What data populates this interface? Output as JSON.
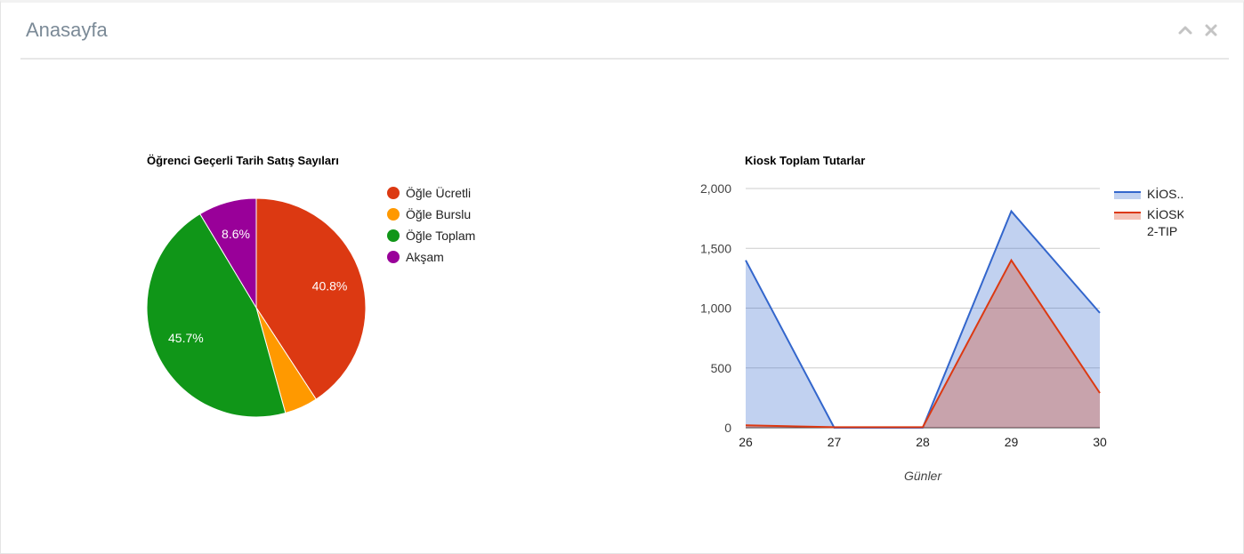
{
  "header": {
    "title": "Anasayfa",
    "collapse_icon": "chevron-up-icon",
    "close_icon": "close-icon"
  },
  "chart_data": [
    {
      "type": "pie",
      "title": "Öğrenci Geçerli Tarih Satış Sayıları",
      "legend_position": "right",
      "slices": [
        {
          "label": "Öğle Ücretli",
          "value": 40.8,
          "display": "40.8%",
          "color": "#dc3912"
        },
        {
          "label": "Öğle Burslu",
          "value": 4.9,
          "display": "",
          "color": "#ff9900"
        },
        {
          "label": "Öğle Toplam",
          "value": 45.7,
          "display": "45.7%",
          "color": "#109618"
        },
        {
          "label": "Akşam",
          "value": 8.6,
          "display": "8.6%",
          "color": "#990099"
        }
      ]
    },
    {
      "type": "area",
      "title": "Kiosk Toplam Tutarlar",
      "xlabel": "Günler",
      "ylabel": "",
      "x": [
        26,
        27,
        28,
        29,
        30
      ],
      "x_tick_labels": [
        "26",
        "27",
        "28",
        "29",
        "30"
      ],
      "ylim": [
        0,
        2000
      ],
      "y_ticks": [
        0,
        500,
        1000,
        1500,
        2000
      ],
      "y_tick_labels": [
        "0",
        "500",
        "1,000",
        "1,500",
        "2,000"
      ],
      "grid": true,
      "legend_position": "right",
      "series": [
        {
          "name": "KİOS...",
          "values": [
            1400,
            0,
            0,
            1810,
            960
          ],
          "color": "#3366cc"
        },
        {
          "name": "KİOSK 2-TIP",
          "name_lines": [
            "KİOSK",
            "2-TIP"
          ],
          "values": [
            20,
            5,
            5,
            1400,
            290
          ],
          "color": "#dc3912"
        }
      ]
    }
  ]
}
